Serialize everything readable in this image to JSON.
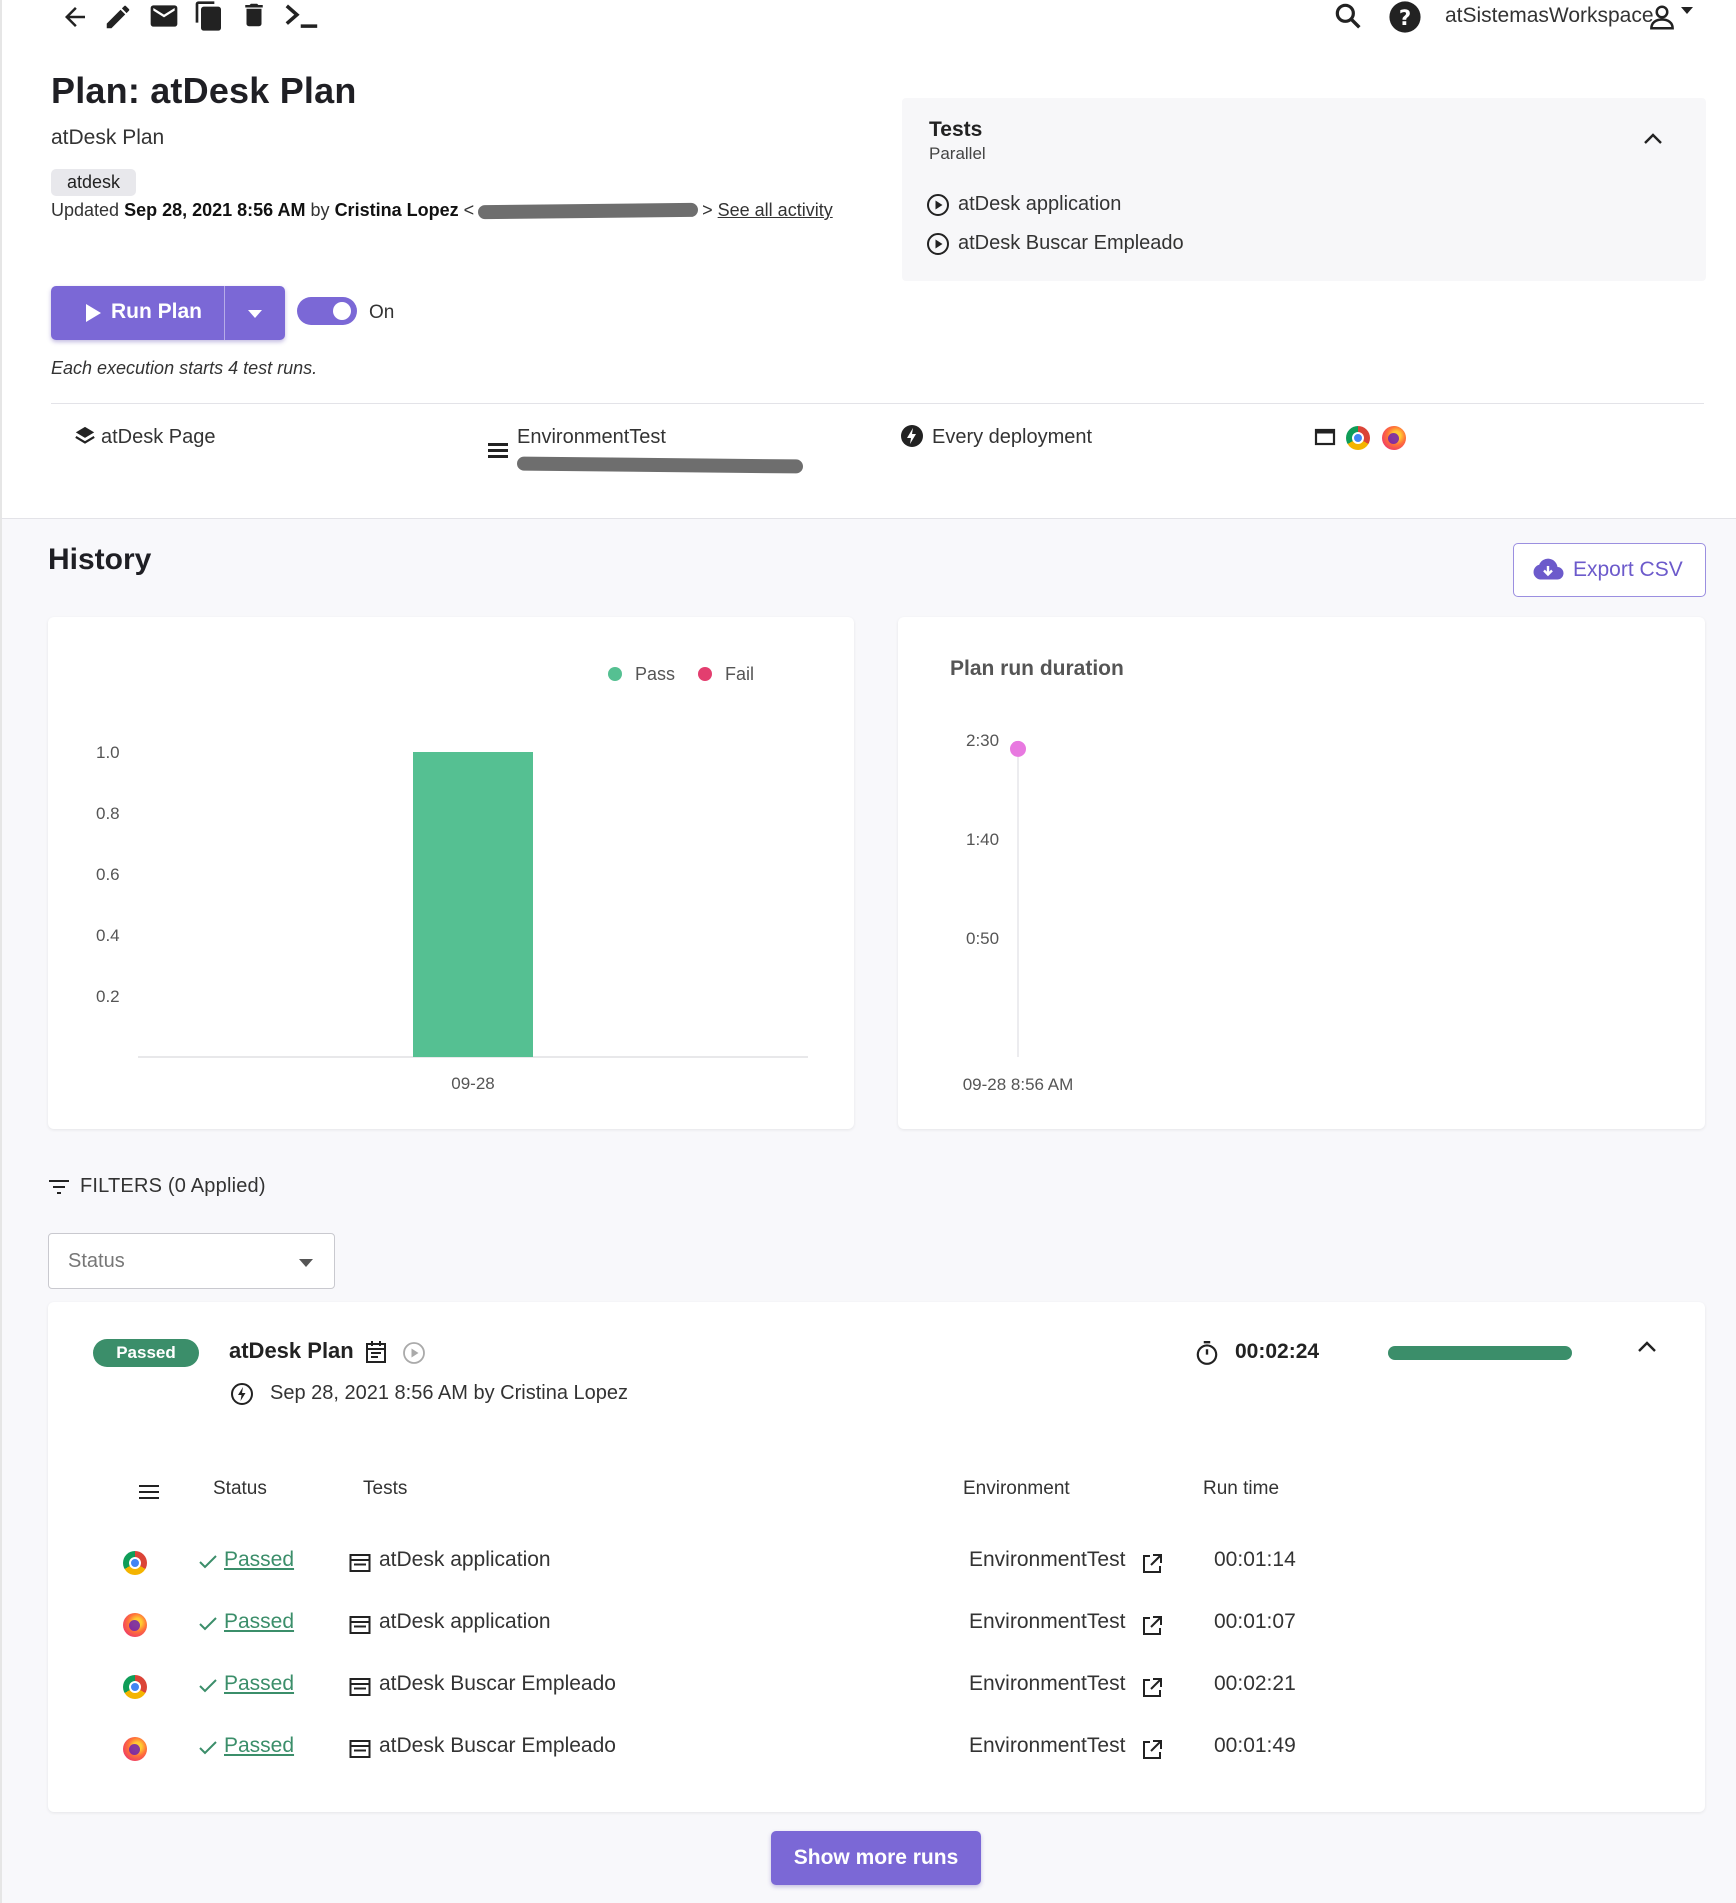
{
  "topbar": {
    "workspace": "atSistemasWorkspace",
    "icons": [
      "back-arrow-icon",
      "edit-icon",
      "mail-icon",
      "copy-icon",
      "trash-icon",
      "terminal-icon",
      "search-icon",
      "help-icon",
      "user-icon",
      "caret-down-icon"
    ]
  },
  "plan": {
    "title": "Plan: atDesk Plan",
    "description": "atDesk Plan",
    "tag": "atdesk",
    "updated_prefix": "Updated",
    "updated_date": "Sep 28, 2021 8:56 AM",
    "updated_by_word": "by",
    "updated_by": "Cristina Lopez",
    "see_all_activity": "See all activity"
  },
  "run": {
    "run_label": "Run Plan",
    "toggle_label": "On",
    "toggle_on": true,
    "exec_note": "Each execution starts 4 test runs."
  },
  "meta": {
    "page": "atDesk Page",
    "environment": "EnvironmentTest",
    "trigger": "Every deployment"
  },
  "tests_panel": {
    "title": "Tests",
    "mode": "Parallel",
    "items": [
      "atDesk application",
      "atDesk Buscar Empleado"
    ]
  },
  "history": {
    "title": "History",
    "export_label": "Export CSV"
  },
  "chart_data": [
    {
      "type": "bar",
      "title": "",
      "categories": [
        "09-28"
      ],
      "series": [
        {
          "name": "Pass",
          "values": [
            1.0
          ],
          "color": "#55c092"
        },
        {
          "name": "Fail",
          "values": [
            0
          ],
          "color": "#e33e6f"
        }
      ],
      "y_ticks": [
        "0.2",
        "0.4",
        "0.6",
        "0.8",
        "1.0"
      ],
      "ylim": [
        0,
        1.0
      ],
      "legend": "top-right",
      "grid": false
    },
    {
      "type": "scatter",
      "title": "Plan run duration",
      "x": [
        "09-28 8:56 AM"
      ],
      "y_seconds": [
        144
      ],
      "y_ticks": [
        "0:50",
        "1:40",
        "2:30"
      ],
      "ylim_seconds": [
        0,
        150
      ],
      "point_color": "#e879e0",
      "grid": false
    }
  ],
  "filters": {
    "label": "FILTERS",
    "applied": "(0 Applied)",
    "status_placeholder": "Status"
  },
  "run_item": {
    "status": "Passed",
    "name": "atDesk Plan",
    "when": "Sep 28, 2021 8:56 AM by Cristina Lopez",
    "duration": "00:02:24",
    "progress": 1.0,
    "columns": [
      "Status",
      "Tests",
      "Environment",
      "Run time"
    ],
    "rows": [
      {
        "browser": "chrome",
        "status": "Passed",
        "test": "atDesk application",
        "environment": "EnvironmentTest",
        "run_time": "00:01:14"
      },
      {
        "browser": "firefox",
        "status": "Passed",
        "test": "atDesk application",
        "environment": "EnvironmentTest",
        "run_time": "00:01:07"
      },
      {
        "browser": "chrome",
        "status": "Passed",
        "test": "atDesk Buscar Empleado",
        "environment": "EnvironmentTest",
        "run_time": "00:02:21"
      },
      {
        "browser": "firefox",
        "status": "Passed",
        "test": "atDesk Buscar Empleado",
        "environment": "EnvironmentTest",
        "run_time": "00:01:49"
      }
    ]
  },
  "show_more_label": "Show more runs"
}
